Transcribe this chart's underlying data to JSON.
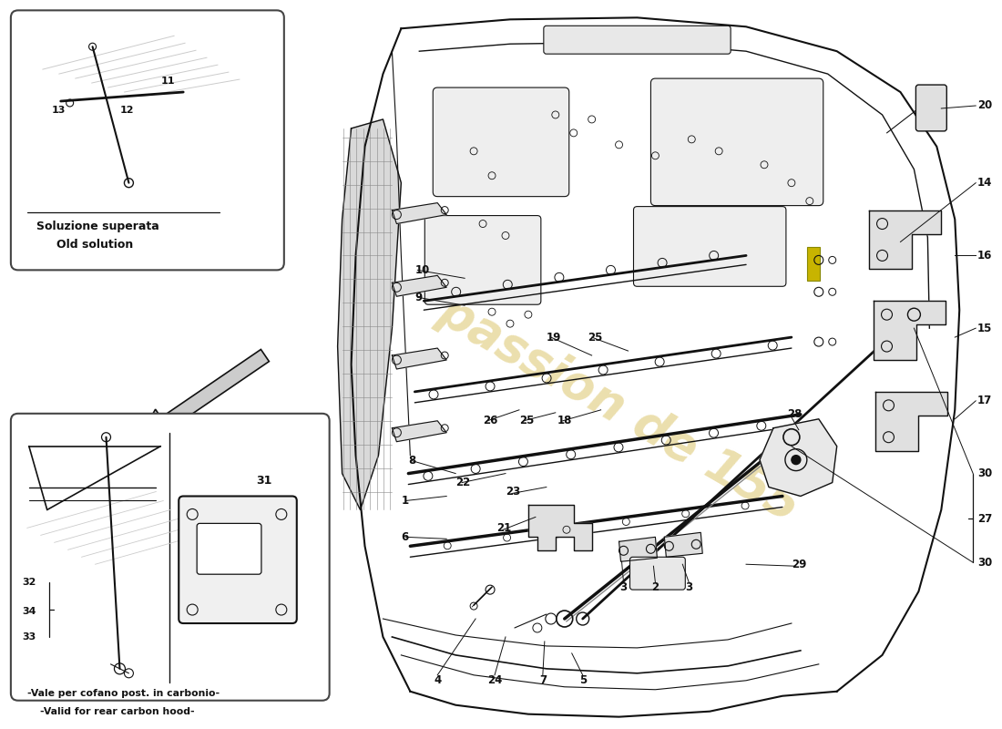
{
  "bg_color": "#ffffff",
  "line_color": "#111111",
  "watermark_text": "passion de 155",
  "watermark_color": "#d4b84a",
  "inset1_label1": "Soluzione superata",
  "inset1_label2": "Old solution",
  "inset2_label1": "-Vale per cofano post. in carbonio-",
  "inset2_label2": "-Valid for rear carbon hood-",
  "figsize": [
    11.0,
    8.0
  ],
  "dpi": 100
}
